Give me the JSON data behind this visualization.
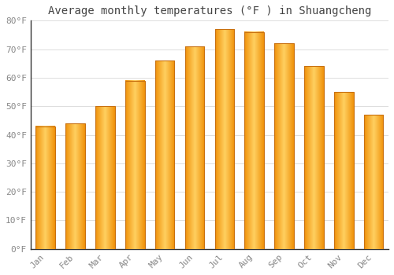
{
  "title": "Average monthly temperatures (°F ) in Shuangcheng",
  "months": [
    "Jan",
    "Feb",
    "Mar",
    "Apr",
    "May",
    "Jun",
    "Jul",
    "Aug",
    "Sep",
    "Oct",
    "Nov",
    "Dec"
  ],
  "values": [
    43,
    44,
    50,
    59,
    66,
    71,
    77,
    76,
    72,
    64,
    55,
    47
  ],
  "bar_color_center": "#FFD060",
  "bar_color_edge": "#F0920A",
  "bar_border_color": "#C87010",
  "ylim": [
    0,
    80
  ],
  "yticks": [
    0,
    10,
    20,
    30,
    40,
    50,
    60,
    70,
    80
  ],
  "ytick_labels": [
    "0°F",
    "10°F",
    "20°F",
    "30°F",
    "40°F",
    "50°F",
    "60°F",
    "70°F",
    "80°F"
  ],
  "bg_color": "#FFFFFF",
  "grid_color": "#DDDDDD",
  "title_fontsize": 10,
  "tick_fontsize": 8,
  "bar_width": 0.65,
  "tick_color": "#888888",
  "spine_color": "#333333"
}
